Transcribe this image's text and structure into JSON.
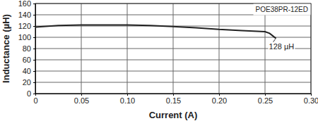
{
  "chart_data": {
    "type": "line",
    "x_label": "Current (A)",
    "y_label": "Inductance (µH)",
    "annotations": [
      "POE38PR-12ED",
      "128 µH"
    ],
    "x": [
      0,
      0.025,
      0.05,
      0.075,
      0.1,
      0.125,
      0.15,
      0.175,
      0.2,
      0.225,
      0.25,
      0.255,
      0.262
    ],
    "values": [
      118,
      121,
      122,
      122,
      122,
      121,
      119,
      117,
      114,
      112,
      110,
      107,
      98
    ],
    "color": "#222222",
    "xlim": [
      0,
      0.3
    ],
    "xticks": [
      0,
      0.05,
      {
        "value": 0.1,
        "label": "0.10"
      },
      0.15,
      {
        "value": 0.2,
        "label": "0.20"
      },
      0.25,
      {
        "value": 0.3,
        "label": "0.30"
      }
    ],
    "ylim": [
      0,
      160
    ],
    "yticks": [
      0,
      20,
      40,
      60,
      80,
      100,
      120,
      140,
      160
    ],
    "grid": true
  }
}
